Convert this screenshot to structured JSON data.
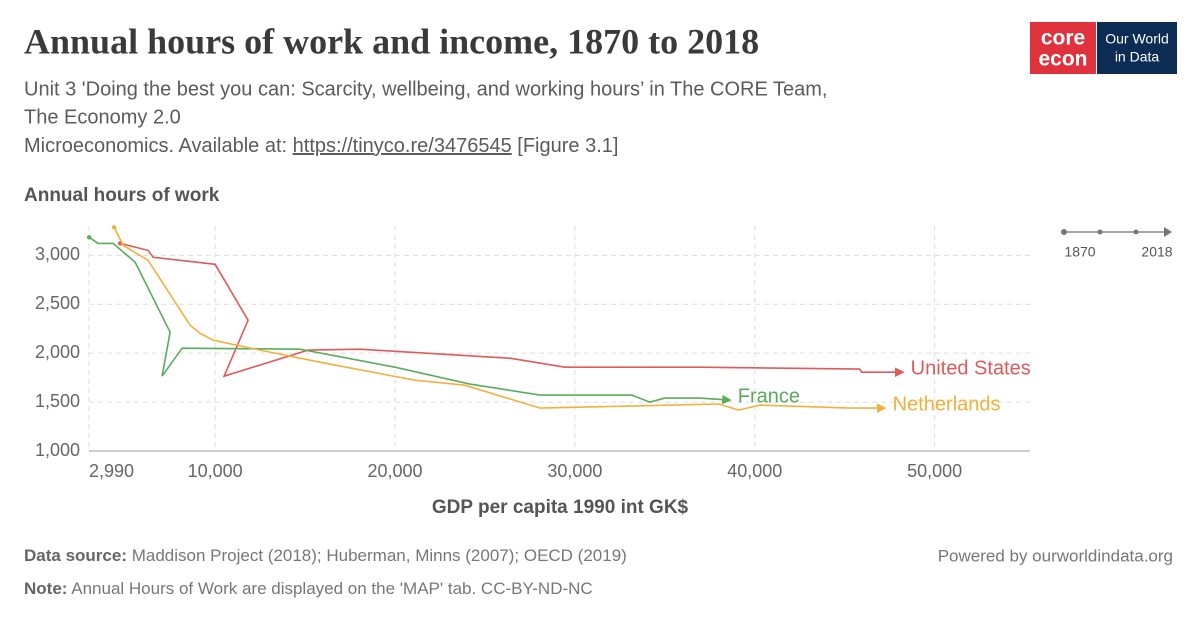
{
  "chart_data": {
    "type": "line",
    "title": "Annual hours of work and income, 1870 to 2018",
    "subtitle": {
      "line1": "Unit 3 'Doing the best you can: Scarcity, wellbeing, and working hours’ in The CORE Team,",
      "line2": "The Economy 2.0",
      "line3_start": "Microeconomics. Available at:",
      "link": "https://tinyco.re/3476545",
      "line3_end": "[Figure 3.1]"
    },
    "y_label": "Annual hours of work",
    "x_label": "GDP per capita 1990 int GK$",
    "xlim": [
      2990,
      55300
    ],
    "ylim": [
      1000,
      3300
    ],
    "xticks": [
      {
        "value": 2990,
        "label": "2,990"
      },
      {
        "value": 10000,
        "label": "10,000"
      },
      {
        "value": 20000,
        "label": "20,000"
      },
      {
        "value": 30000,
        "label": "30,000"
      },
      {
        "value": 40000,
        "label": "40,000"
      },
      {
        "value": 50000,
        "label": "50,000"
      }
    ],
    "yticks": [
      {
        "value": 1000,
        "label": "1,000"
      },
      {
        "value": 1500,
        "label": "1,500"
      },
      {
        "value": 2000,
        "label": "2,000"
      },
      {
        "value": 2500,
        "label": "2,500"
      },
      {
        "value": 3000,
        "label": "3,000"
      }
    ],
    "grid": true,
    "timeline": {
      "start": "1870",
      "end": "2018"
    },
    "series": [
      {
        "name": "United States",
        "color": "#e05a5a",
        "x": [
          4722,
          6278,
          6556,
          10000,
          11833,
          10500,
          15167,
          18056,
          26389,
          29444,
          36944,
          45833,
          45944,
          48222
        ],
        "values": [
          3122,
          3051,
          2980,
          2908,
          2337,
          1765,
          2031,
          2041,
          1949,
          1857,
          1857,
          1837,
          1806,
          1806
        ]
      },
      {
        "name": "France",
        "color": "#5aac5c",
        "x": [
          3000,
          3500,
          4333,
          5556,
          7500,
          7056,
          8167,
          14722,
          20000,
          24167,
          28056,
          33167,
          34167,
          35000,
          36944,
          38611
        ],
        "values": [
          3184,
          3122,
          3122,
          2929,
          2214,
          1765,
          2051,
          2041,
          1857,
          1684,
          1571,
          1571,
          1500,
          1541,
          1541,
          1520
        ]
      },
      {
        "name": "Netherlands",
        "color": "#f2b13b",
        "x": [
          4389,
          4889,
          6278,
          8611,
          9167,
          9889,
          12500,
          15833,
          21111,
          23889,
          28056,
          38000,
          39111,
          40278,
          45278,
          47222
        ],
        "values": [
          3286,
          3102,
          2949,
          2286,
          2204,
          2133,
          2031,
          1908,
          1724,
          1673,
          1439,
          1480,
          1418,
          1469,
          1439,
          1439
        ]
      }
    ]
  },
  "logo": {
    "core1": "core",
    "core2": "econ",
    "owid1": "Our World",
    "owid2": "in Data"
  },
  "footer": {
    "source_label": "Data source:",
    "source": "Maddison Project (2018); Huberman, Minns (2007); OECD (2019)",
    "note_label": "Note:",
    "note": "Annual Hours of Work are displayed on the 'MAP' tab. CC-BY-ND-NC",
    "powered": "Powered by ourworldindata.org"
  }
}
